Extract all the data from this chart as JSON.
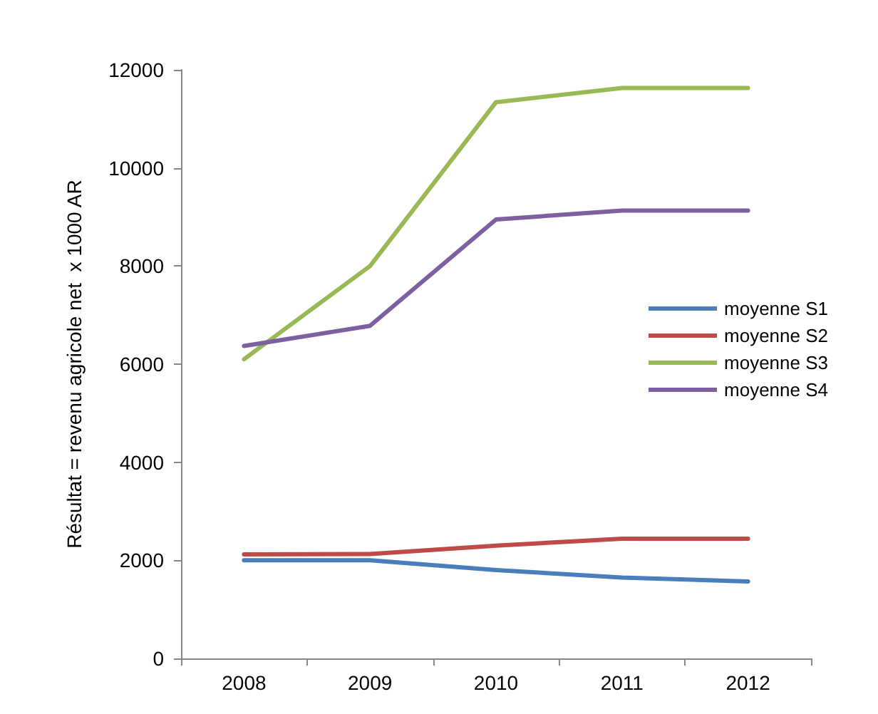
{
  "chart_data": {
    "type": "line",
    "ylabel": "Résultat = revenu agricole net  x 1000 AR",
    "categories": [
      "2008",
      "2009",
      "2010",
      "2011",
      "2012"
    ],
    "series": [
      {
        "name": "moyenne S1",
        "color": "#4a7ebb",
        "values": [
          2000,
          2000,
          1800,
          1650,
          1570
        ]
      },
      {
        "name": "moyenne S2",
        "color": "#be4b48",
        "values": [
          2120,
          2130,
          2300,
          2440,
          2440
        ]
      },
      {
        "name": "moyenne S3",
        "color": "#98b954",
        "values": [
          6100,
          8000,
          11340,
          11630,
          11630
        ]
      },
      {
        "name": "moyenne S4",
        "color": "#7d60a0",
        "values": [
          6370,
          6780,
          8950,
          9130,
          9130
        ]
      }
    ],
    "ylim": [
      0,
      12000
    ],
    "yticks": [
      0,
      2000,
      4000,
      6000,
      8000,
      10000,
      12000
    ],
    "grid": false,
    "legend": "right",
    "marker": "none",
    "line_style": "solid"
  }
}
